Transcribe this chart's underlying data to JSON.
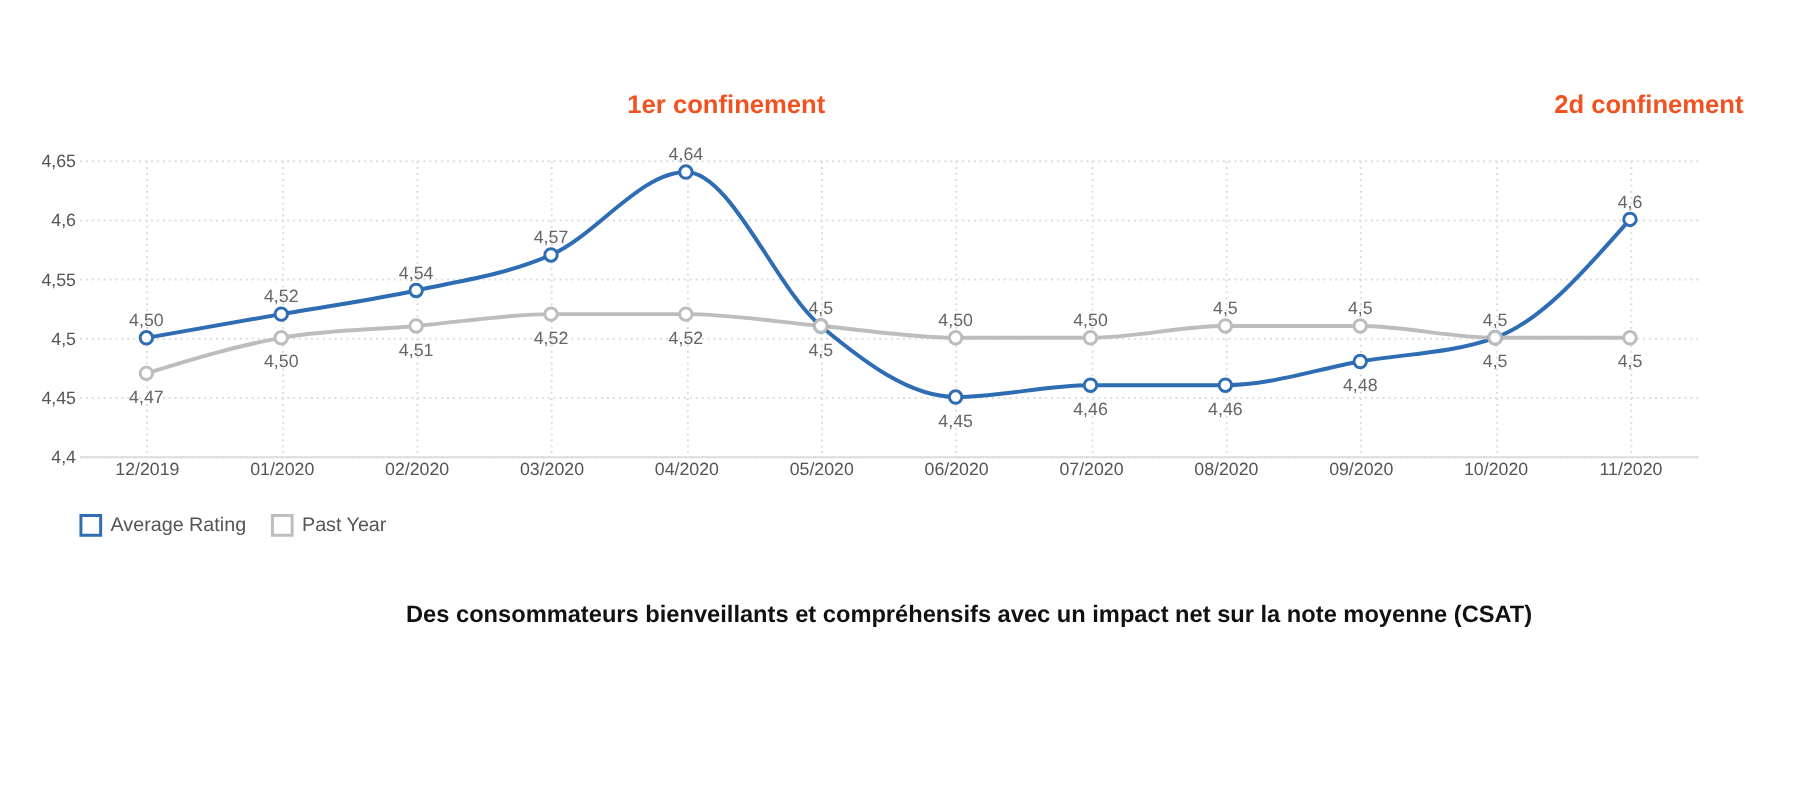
{
  "chart_data": {
    "type": "line",
    "categories": [
      "12/2019",
      "01/2020",
      "02/2020",
      "03/2020",
      "04/2020",
      "05/2020",
      "06/2020",
      "07/2020",
      "08/2020",
      "09/2020",
      "10/2020",
      "11/2020"
    ],
    "series": [
      {
        "name": "Average Rating",
        "color": "#2e6db4",
        "values": [
          4.5,
          4.52,
          4.54,
          4.57,
          4.64,
          4.51,
          4.45,
          4.46,
          4.46,
          4.48,
          4.5,
          4.6
        ],
        "value_labels": [
          "4,50",
          "4,52",
          "4,54",
          "4,57",
          "4,64",
          "4,5",
          "4,45",
          "4,46",
          "4,46",
          "4,48",
          "4,5",
          "4,6"
        ]
      },
      {
        "name": "Past Year",
        "color": "#bdbdbd",
        "values": [
          4.47,
          4.5,
          4.51,
          4.52,
          4.52,
          4.51,
          4.5,
          4.5,
          4.51,
          4.51,
          4.5,
          4.5
        ],
        "value_labels": [
          "4,47",
          "4,50",
          "4,51",
          "4,52",
          "4,52",
          "4,5",
          "4,50",
          "4,50",
          "4,5",
          "4,5",
          "4,5",
          "4,5"
        ]
      }
    ],
    "ylim": [
      4.4,
      4.65
    ],
    "yticks": [
      {
        "value": 4.4,
        "label": "4,4"
      },
      {
        "value": 4.45,
        "label": "4,45"
      },
      {
        "value": 4.5,
        "label": "4,5"
      },
      {
        "value": 4.55,
        "label": "4,55"
      },
      {
        "value": 4.6,
        "label": "4,6"
      },
      {
        "value": 4.65,
        "label": "4,65"
      }
    ],
    "grid": true,
    "legend": "bottom",
    "marker": "circle",
    "line_style": "solid",
    "annotations": [
      "1er confinement",
      "2d confinement",
      "Des consommateurs bienveillants et compréhensifs avec un impact net sur la note moyenne (CSAT)"
    ]
  }
}
